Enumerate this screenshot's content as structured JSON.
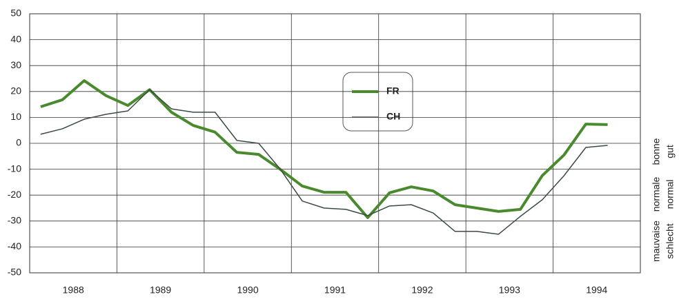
{
  "chart_data": {
    "type": "line",
    "x": [
      1988.125,
      1988.375,
      1988.625,
      1988.875,
      1989.125,
      1989.375,
      1989.625,
      1989.875,
      1990.125,
      1990.375,
      1990.625,
      1990.875,
      1991.125,
      1991.375,
      1991.625,
      1991.875,
      1992.125,
      1992.375,
      1992.625,
      1992.875,
      1993.125,
      1993.375,
      1993.625,
      1993.875,
      1994.125,
      1994.375,
      1994.625
    ],
    "series": [
      {
        "name": "FR",
        "color": "#4a8a2e",
        "width": 4,
        "values": [
          14.1,
          16.8,
          24.2,
          18.4,
          14.6,
          20.7,
          12,
          6.9,
          4.3,
          -3.5,
          -4.3,
          -10.1,
          -16.5,
          -18.9,
          -18.9,
          -28.7,
          -19.1,
          -16.8,
          -18.4,
          -23.7,
          -25,
          -26.3,
          -25.5,
          -12.5,
          -4.5,
          7.4,
          7.2
        ]
      },
      {
        "name": "CH",
        "color": "#3a4a40",
        "width": 1.5,
        "values": [
          3.5,
          5.6,
          9.3,
          11.2,
          12.5,
          20.7,
          13.3,
          12,
          12,
          1.1,
          0,
          -10.1,
          -22.3,
          -25,
          -25.5,
          -27.9,
          -24.2,
          -23.7,
          -26.9,
          -34,
          -34,
          -35.1,
          -28.2,
          -21.8,
          -12.5,
          -1.6,
          -0.8
        ]
      }
    ],
    "xlim": [
      1988,
      1995
    ],
    "xticks": [
      {
        "value": 1988.5,
        "label": "1988"
      },
      {
        "value": 1989.5,
        "label": "1989"
      },
      {
        "value": 1990.5,
        "label": "1990"
      },
      {
        "value": 1991.5,
        "label": "1991"
      },
      {
        "value": 1992.5,
        "label": "1992"
      },
      {
        "value": 1993.5,
        "label": "1993"
      },
      {
        "value": 1994.5,
        "label": "1994"
      }
    ],
    "xgrid": [
      1988,
      1989,
      1990,
      1991,
      1992,
      1993,
      1994,
      1995
    ],
    "ylim": [
      -50,
      50
    ],
    "yticks": [
      -50,
      -40,
      -30,
      -20,
      -10,
      0,
      10,
      20,
      30,
      40,
      50
    ],
    "grid": true,
    "right_labels": [
      [
        "mauvaise",
        "normale",
        "bonne"
      ],
      [
        "schlecht",
        "normal",
        "gut"
      ]
    ]
  }
}
